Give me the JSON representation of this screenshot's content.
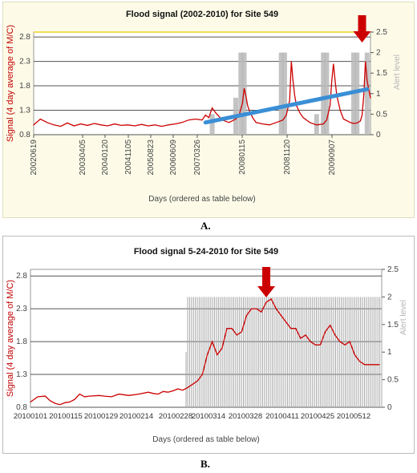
{
  "chart_data": [
    {
      "type": "line",
      "title": "Flood signal (2002-2010) for Site 549",
      "xlabel": "Days (ordered as table below)",
      "ylabel": "Signal (4 day average of M/C)",
      "y2label": "Alert level",
      "ylim": [
        0.8,
        2.9
      ],
      "y_ticks": [
        "0.8",
        "1.3",
        "1.8",
        "2.3",
        "2.8"
      ],
      "y2lim": [
        0,
        2.5
      ],
      "y2_ticks": [
        "0",
        "0.5",
        "1",
        "1.5",
        "2",
        "2.5"
      ],
      "x_ticks": [
        "20020619",
        "20030405",
        "20040120",
        "20041105",
        "20050823",
        "20060609",
        "20070326",
        "20080115",
        "20081120",
        "20090907"
      ],
      "xlim": [
        0,
        100
      ],
      "series": [
        {
          "color": "#cc0000",
          "kind": "signal",
          "x": [
            0,
            2,
            4,
            6,
            8,
            10,
            12,
            14,
            16,
            18,
            20,
            22,
            24,
            26,
            28,
            30,
            32,
            34,
            36,
            38,
            40,
            42,
            44,
            46,
            48,
            50,
            51,
            52,
            53,
            54,
            56,
            58,
            60,
            61,
            62,
            62.5,
            63,
            63.5,
            64,
            65,
            66,
            68,
            70,
            72,
            74,
            75,
            76,
            76.5,
            77,
            77.5,
            78,
            79,
            80,
            82,
            84,
            86,
            87,
            88,
            88.5,
            89,
            89.5,
            90,
            91,
            92,
            94,
            95,
            96,
            97,
            97.5,
            98,
            98.5,
            99,
            100
          ],
          "y": [
            1.0,
            1.12,
            1.05,
            1.0,
            0.97,
            1.04,
            0.98,
            1.02,
            0.99,
            1.03,
            1.0,
            0.98,
            1.02,
            0.99,
            1.0,
            0.98,
            1.01,
            0.98,
            1.0,
            0.97,
            1.0,
            1.02,
            1.05,
            1.1,
            1.12,
            1.1,
            1.2,
            1.15,
            1.35,
            1.25,
            1.1,
            1.05,
            1.12,
            1.2,
            1.45,
            1.75,
            1.6,
            1.4,
            1.3,
            1.15,
            1.05,
            1.02,
            1.0,
            1.05,
            1.1,
            1.2,
            1.5,
            2.3,
            1.9,
            1.6,
            1.4,
            1.25,
            1.15,
            1.05,
            1.0,
            1.02,
            1.1,
            1.4,
            1.9,
            2.25,
            1.9,
            1.6,
            1.3,
            1.12,
            1.05,
            1.03,
            1.04,
            1.08,
            1.2,
            1.6,
            2.3,
            1.9,
            1.55
          ]
        },
        {
          "color": "#3a8fd6",
          "kind": "trend",
          "x": [
            51,
            99
          ],
          "y": [
            1.05,
            1.73
          ]
        }
      ],
      "alert_bars": [
        {
          "x": 53,
          "level": 0.5
        },
        {
          "x": 60,
          "level": 0.9
        },
        {
          "x": 61.5,
          "level": 2.0
        },
        {
          "x": 62.5,
          "level": 2.0
        },
        {
          "x": 73.5,
          "level": 2.0
        },
        {
          "x": 74.5,
          "level": 2.0
        },
        {
          "x": 84,
          "level": 0.5
        },
        {
          "x": 86,
          "level": 2.0
        },
        {
          "x": 87,
          "level": 2.0
        },
        {
          "x": 95,
          "level": 2.0
        },
        {
          "x": 96,
          "level": 2.0
        },
        {
          "x": 99,
          "level": 2.0
        }
      ],
      "arrow_at_x": 97.5,
      "grid": true
    },
    {
      "type": "line",
      "title": "Flood signal 5-24-2010 for Site 549",
      "xlabel": "Days (ordered as table below)",
      "ylabel": "Signal (4 day average of M/C)",
      "y2label": "Alert level",
      "ylim": [
        0.8,
        2.9
      ],
      "y_ticks": [
        "0.8",
        "1.3",
        "1.8",
        "2.3",
        "2.8"
      ],
      "y2lim": [
        0,
        2.5
      ],
      "y2_ticks": [
        "0",
        "0.5",
        "1",
        "1.5",
        "2",
        "2.5"
      ],
      "x_ticks": [
        "20100101",
        "20100115",
        "20100129",
        "20100214",
        "20100228",
        "20100314",
        "20100328",
        "20100411",
        "20100425",
        "20100512"
      ],
      "xlim": [
        0,
        143
      ],
      "series": [
        {
          "color": "#cc0000",
          "kind": "signal",
          "x": [
            0,
            3,
            6,
            8,
            10,
            12,
            14,
            16,
            18,
            20,
            22,
            24,
            28,
            30,
            33,
            36,
            40,
            44,
            48,
            50,
            52,
            54,
            56,
            58,
            60,
            62,
            64,
            66,
            68,
            70,
            72,
            74,
            76,
            78,
            80,
            82,
            84,
            86,
            88,
            90,
            92,
            94,
            96,
            98,
            100,
            102,
            104,
            106,
            108,
            110,
            112,
            114,
            116,
            118,
            120,
            122,
            124,
            126,
            128,
            130,
            132,
            134,
            136,
            138,
            140,
            142
          ],
          "y": [
            0.88,
            0.96,
            0.97,
            0.9,
            0.86,
            0.84,
            0.87,
            0.88,
            0.92,
            1.0,
            0.96,
            0.97,
            0.98,
            0.97,
            0.96,
            1.0,
            0.98,
            1.0,
            1.03,
            1.01,
            1.0,
            1.04,
            1.03,
            1.05,
            1.08,
            1.06,
            1.1,
            1.15,
            1.2,
            1.3,
            1.6,
            1.8,
            1.6,
            1.7,
            2.0,
            2.0,
            1.9,
            1.95,
            2.2,
            2.3,
            2.3,
            2.25,
            2.4,
            2.45,
            2.3,
            2.2,
            2.1,
            2.0,
            2.0,
            1.85,
            1.9,
            1.8,
            1.75,
            1.75,
            1.95,
            2.05,
            1.9,
            1.8,
            1.75,
            1.8,
            1.6,
            1.5,
            1.45,
            1.45,
            1.45,
            1.45
          ]
        },
        {
          "color": "#cc0000",
          "kind": "signal",
          "x": [],
          "y": []
        }
      ],
      "alert_region": {
        "from_x": 64,
        "to_x": 143,
        "level": 2.0
      },
      "arrow_at_x": 96,
      "grid": true
    }
  ],
  "captions": {
    "a": "A.",
    "b": "B."
  }
}
